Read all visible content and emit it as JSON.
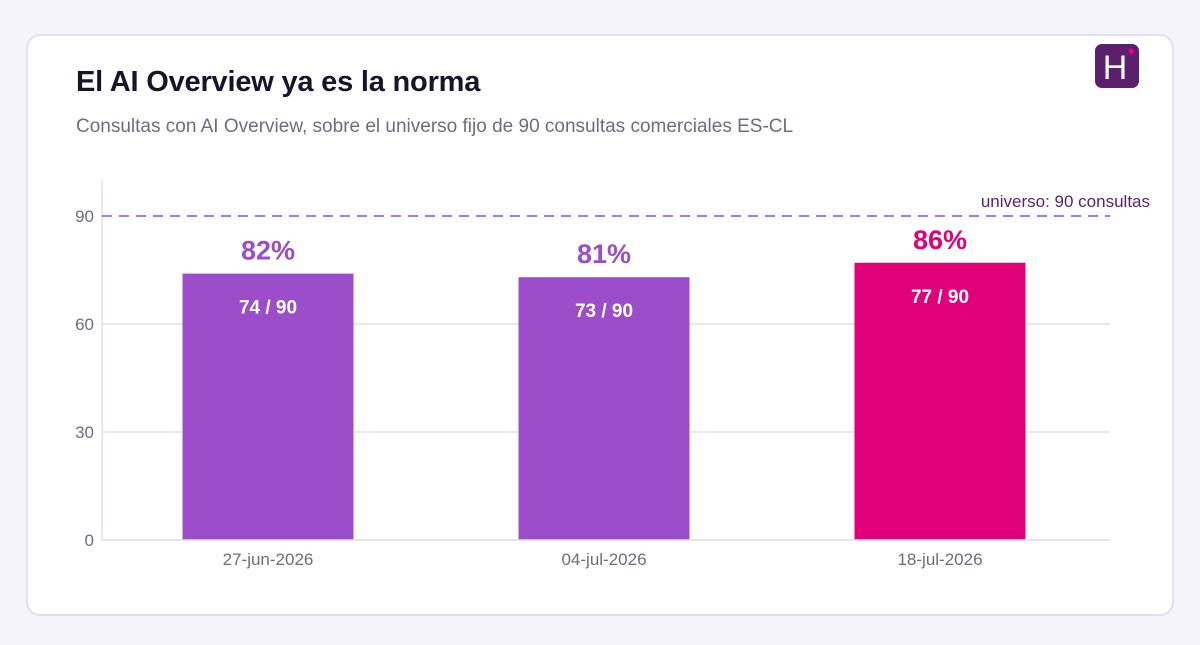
{
  "header": {
    "title": "El AI Overview ya es la norma",
    "subtitle": "Consultas con AI Overview, sobre el universo fijo de 90 consultas comerciales ES-CL",
    "logo_letter": "H",
    "logo_icon": "brand-h-logo-icon"
  },
  "colors": {
    "bar_default": "#9b4dca",
    "bar_highlight": "#e2007a",
    "reference_line": "#a87bd6",
    "reference_label": "#5b1f6e",
    "grid": "#e2dfee",
    "logo_bg": "#5b1f6e",
    "logo_dot": "#e2007a"
  },
  "chart_data": {
    "type": "bar",
    "title": "El AI Overview ya es la norma",
    "subtitle": "Consultas con AI Overview, sobre el universo fijo de 90 consultas comerciales ES-CL",
    "categories": [
      "27-jun-2026",
      "04-jul-2026",
      "18-jul-2026"
    ],
    "values": [
      74,
      73,
      77
    ],
    "count_labels": [
      "74 / 90",
      "73 / 90",
      "77 / 90"
    ],
    "percent_labels": [
      "82%",
      "81%",
      "86%"
    ],
    "highlight_index": 2,
    "ylim": [
      0,
      100
    ],
    "yticks": [
      0,
      30,
      60,
      90
    ],
    "grid": true,
    "reference_line": {
      "value": 90,
      "label": "universo: 90 consultas",
      "style": "dashed"
    },
    "xlabel": "",
    "ylabel": ""
  }
}
